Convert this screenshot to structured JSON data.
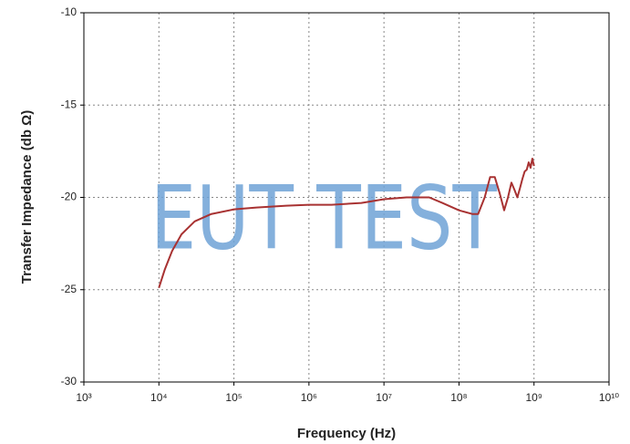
{
  "chart_data": {
    "type": "line",
    "watermark": "EUT TEST",
    "xlabel": "Frequency (Hz)",
    "ylabel": "Transfer Impedance (db Ω)",
    "xscale": "log",
    "grid": true,
    "xlim": [
      1000,
      10000000000
    ],
    "ylim": [
      -30,
      -10
    ],
    "xticks": [
      {
        "value": 1000,
        "label": "10³"
      },
      {
        "value": 10000,
        "label": "10⁴"
      },
      {
        "value": 100000,
        "label": "10⁵"
      },
      {
        "value": 1000000,
        "label": "10⁶"
      },
      {
        "value": 10000000,
        "label": "10⁷"
      },
      {
        "value": 100000000,
        "label": "10⁸"
      },
      {
        "value": 1000000000,
        "label": "10⁹"
      },
      {
        "value": 10000000000,
        "label": "10¹⁰"
      }
    ],
    "yticks": [
      -30,
      -25,
      -20,
      -15,
      -10
    ],
    "x": [
      10000,
      12000,
      15000,
      20000,
      30000,
      50000,
      100000,
      200000,
      500000,
      1000000,
      2000000,
      5000000,
      10000000,
      20000000,
      40000000,
      60000000,
      100000000,
      150000000,
      180000000,
      220000000,
      260000000,
      300000000,
      350000000,
      400000000,
      450000000,
      500000000,
      550000000,
      600000000,
      650000000,
      700000000,
      750000000,
      800000000,
      850000000,
      900000000,
      950000000,
      1000000000
    ],
    "series": [
      {
        "color": "#a83232",
        "values": [
          -24.9,
          -23.9,
          -22.9,
          -22.0,
          -21.3,
          -20.9,
          -20.65,
          -20.55,
          -20.45,
          -20.4,
          -20.4,
          -20.3,
          -20.1,
          -20.0,
          -20.0,
          -20.3,
          -20.7,
          -20.9,
          -20.9,
          -20.0,
          -18.9,
          -18.9,
          -19.8,
          -20.7,
          -20.0,
          -19.2,
          -19.6,
          -20.0,
          -19.5,
          -19.0,
          -18.6,
          -18.5,
          -18.1,
          -18.4,
          -17.9,
          -18.3
        ]
      }
    ]
  }
}
